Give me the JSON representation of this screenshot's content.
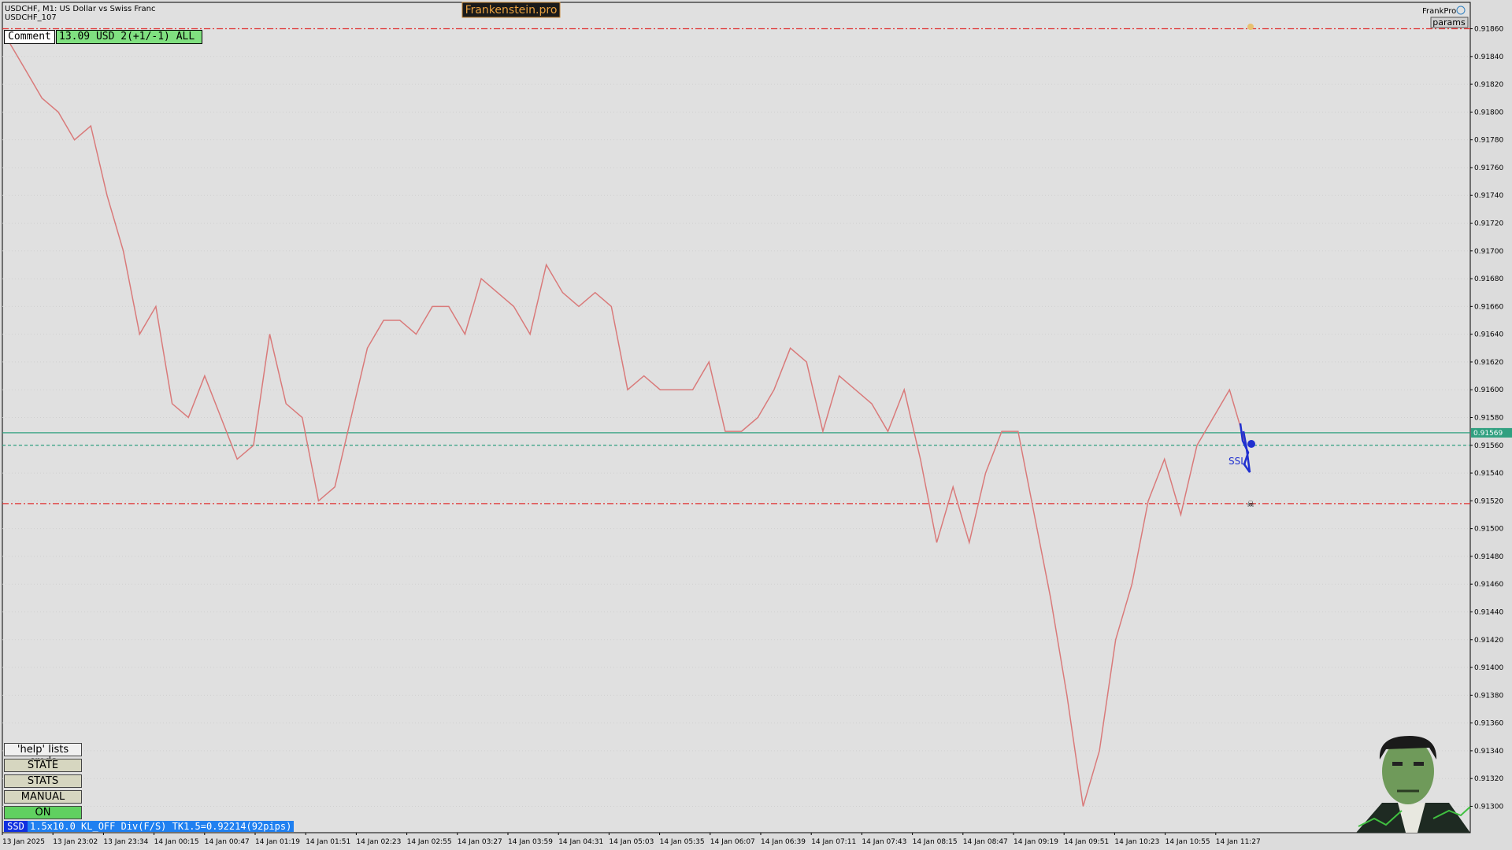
{
  "header": {
    "symbol": "USDCHF, M1:  US Dollar vs Swiss Franc",
    "subtitle": "USDCHF_107",
    "brand": "Frankenstein.pro",
    "expert": "FrankPro",
    "params": "params"
  },
  "comment": {
    "label": "Comment",
    "text": "13.09 USD 2(+1/-1) ALL"
  },
  "buttons": [
    "'help' lists cmds",
    "STATE",
    "STATS",
    "MANUAL",
    "ON"
  ],
  "status": {
    "tag": "SSD",
    "text": "1.5x10.0 KL_OFF Div(F/S) TK1.5=0.92214(92pips)"
  },
  "signal": "SSL",
  "chart": {
    "type": "line",
    "ylim": [
      0.91281,
      0.91879
    ],
    "yticks": [
      {
        "value": 0.913,
        "label": "0.91300"
      },
      {
        "value": 0.9132,
        "label": "0.91320"
      },
      {
        "value": 0.9134,
        "label": "0.91340"
      },
      {
        "value": 0.9136,
        "label": "0.91360"
      },
      {
        "value": 0.9138,
        "label": "0.91380"
      },
      {
        "value": 0.914,
        "label": "0.91400"
      },
      {
        "value": 0.9142,
        "label": "0.91420"
      },
      {
        "value": 0.9144,
        "label": "0.91440"
      },
      {
        "value": 0.9146,
        "label": "0.91460"
      },
      {
        "value": 0.9148,
        "label": "0.91480"
      },
      {
        "value": 0.915,
        "label": "0.91500"
      },
      {
        "value": 0.9152,
        "label": "0.91520"
      },
      {
        "value": 0.9154,
        "label": "0.91540"
      },
      {
        "value": 0.9156,
        "label": "0.91560"
      },
      {
        "value": 0.9158,
        "label": "0.91580"
      },
      {
        "value": 0.916,
        "label": "0.91600"
      },
      {
        "value": 0.9162,
        "label": "0.91620"
      },
      {
        "value": 0.9164,
        "label": "0.91640"
      },
      {
        "value": 0.9166,
        "label": "0.91660"
      },
      {
        "value": 0.9168,
        "label": "0.91680"
      },
      {
        "value": 0.917,
        "label": "0.91700"
      },
      {
        "value": 0.9172,
        "label": "0.91720"
      },
      {
        "value": 0.9174,
        "label": "0.91740"
      },
      {
        "value": 0.9176,
        "label": "0.91760"
      },
      {
        "value": 0.9178,
        "label": "0.91780"
      },
      {
        "value": 0.918,
        "label": "0.91800"
      },
      {
        "value": 0.9182,
        "label": "0.91820"
      },
      {
        "value": 0.9184,
        "label": "0.91840"
      },
      {
        "value": 0.9186,
        "label": "0.91860"
      }
    ],
    "categories": [
      "13 Jan 2025",
      "13 Jan 23:02",
      "13 Jan 23:34",
      "14 Jan 00:15",
      "14 Jan 00:47",
      "14 Jan 01:19",
      "14 Jan 01:51",
      "14 Jan 02:23",
      "14 Jan 02:55",
      "14 Jan 03:27",
      "14 Jan 03:59",
      "14 Jan 04:31",
      "14 Jan 05:03",
      "14 Jan 05:35",
      "14 Jan 06:07",
      "14 Jan 06:39",
      "14 Jan 07:11",
      "14 Jan 07:43",
      "14 Jan 08:15",
      "14 Jan 08:47",
      "14 Jan 09:19",
      "14 Jan 09:51",
      "14 Jan 10:23",
      "14 Jan 10:55",
      "14 Jan 11:27"
    ],
    "price": {
      "color": "#d97a7a",
      "values": [
        0.9185,
        0.9183,
        0.9181,
        0.918,
        0.9178,
        0.9179,
        0.9174,
        0.917,
        0.9164,
        0.9166,
        0.9159,
        0.9158,
        0.9161,
        0.9158,
        0.9155,
        0.9156,
        0.9164,
        0.9159,
        0.9158,
        0.9152,
        0.9153,
        0.9158,
        0.9163,
        0.9165,
        0.9165,
        0.9164,
        0.9166,
        0.9166,
        0.9164,
        0.9168,
        0.9167,
        0.9166,
        0.9164,
        0.9169,
        0.9167,
        0.9166,
        0.9167,
        0.9166,
        0.916,
        0.9161,
        0.916,
        0.916,
        0.916,
        0.9162,
        0.9157,
        0.9157,
        0.9158,
        0.916,
        0.9163,
        0.9162,
        0.9157,
        0.9161,
        0.916,
        0.9159,
        0.9157,
        0.916,
        0.9155,
        0.9149,
        0.9153,
        0.9149,
        0.9154,
        0.9157,
        0.9157,
        0.9151,
        0.9145,
        0.9138,
        0.913,
        0.9134,
        0.9142,
        0.9146,
        0.9152,
        0.9155,
        0.9151,
        0.9156,
        0.9158,
        0.916,
        0.9156
      ]
    },
    "levels": [
      {
        "value": 0.9186,
        "color": "#e03030",
        "style": "dashdot"
      },
      {
        "value": 0.91518,
        "color": "#e03030",
        "style": "dashdot"
      },
      {
        "value": 0.91569,
        "color": "#30a080",
        "style": "solid",
        "label": "0.91569"
      },
      {
        "value": 0.9156,
        "color": "#30a080",
        "style": "dashed"
      }
    ]
  }
}
